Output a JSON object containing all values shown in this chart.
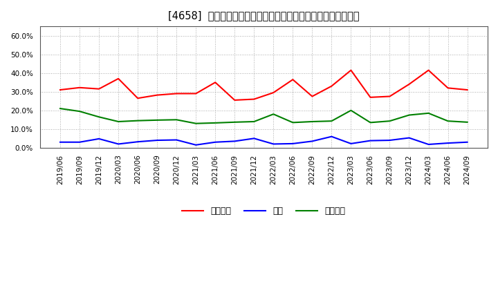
{
  "title": "[4658]  売上債権、在庫、買入債務の総資産に対する比率の推移",
  "x_labels": [
    "2019/06",
    "2019/09",
    "2019/12",
    "2020/03",
    "2020/06",
    "2020/09",
    "2020/12",
    "2021/03",
    "2021/06",
    "2021/09",
    "2021/12",
    "2022/03",
    "2022/06",
    "2022/09",
    "2022/12",
    "2023/03",
    "2023/06",
    "2023/09",
    "2023/12",
    "2024/03",
    "2024/06",
    "2024/09"
  ],
  "uriage_saiken": [
    0.31,
    0.322,
    0.315,
    0.37,
    0.265,
    0.282,
    0.29,
    0.29,
    0.35,
    0.255,
    0.26,
    0.295,
    0.365,
    0.275,
    0.33,
    0.415,
    0.27,
    0.275,
    0.34,
    0.415,
    0.32,
    0.31
  ],
  "zaiko": [
    0.03,
    0.03,
    0.048,
    0.02,
    0.032,
    0.04,
    0.042,
    0.015,
    0.03,
    0.035,
    0.05,
    0.02,
    0.022,
    0.035,
    0.06,
    0.022,
    0.038,
    0.04,
    0.053,
    0.018,
    0.025,
    0.03
  ],
  "kaiire_saimu": [
    0.21,
    0.195,
    0.165,
    0.14,
    0.145,
    0.148,
    0.15,
    0.13,
    0.133,
    0.137,
    0.14,
    0.18,
    0.135,
    0.14,
    0.143,
    0.2,
    0.135,
    0.143,
    0.175,
    0.185,
    0.143,
    0.137
  ],
  "uriage_color": "#ff0000",
  "zaiko_color": "#0000ff",
  "kaiire_color": "#008000",
  "background_color": "#ffffff",
  "grid_color": "#aaaaaa",
  "ylim": [
    0.0,
    0.65
  ],
  "yticks": [
    0.0,
    0.1,
    0.2,
    0.3,
    0.4,
    0.5,
    0.6
  ],
  "legend_labels": [
    "売上債権",
    "在庫",
    "買入債務"
  ],
  "title_fontsize": 10.5,
  "tick_fontsize": 7.5,
  "legend_fontsize": 9
}
